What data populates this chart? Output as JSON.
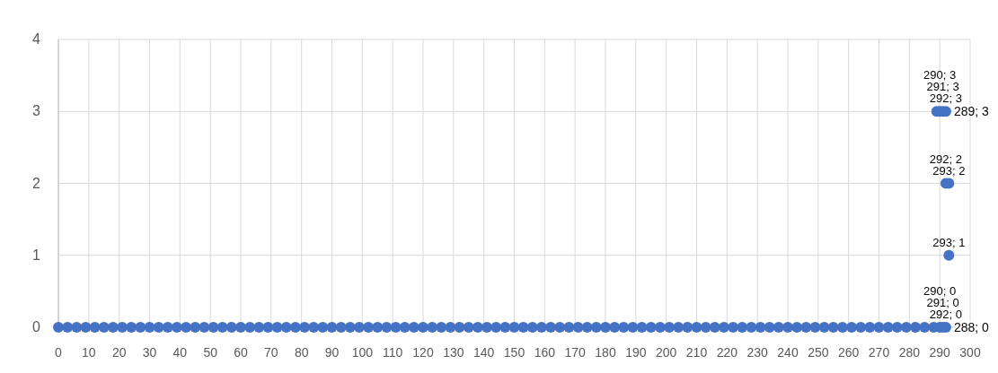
{
  "chart_data": {
    "type": "scatter",
    "xlim": [
      0,
      300
    ],
    "ylim": [
      0,
      4
    ],
    "xticks": [
      0,
      10,
      20,
      30,
      40,
      50,
      60,
      70,
      80,
      90,
      100,
      110,
      120,
      130,
      140,
      150,
      160,
      170,
      180,
      190,
      200,
      210,
      220,
      230,
      240,
      250,
      260,
      270,
      280,
      290,
      300
    ],
    "yticks": [
      0,
      1,
      2,
      3,
      4
    ],
    "grid": true,
    "marker": "circle",
    "legend": false,
    "series": [
      {
        "color": "#4472c4",
        "x": [
          0,
          3,
          6,
          9,
          12,
          15,
          18,
          21,
          24,
          27,
          30,
          33,
          36,
          39,
          42,
          45,
          48,
          51,
          54,
          57,
          60,
          63,
          66,
          69,
          72,
          75,
          78,
          81,
          84,
          87,
          90,
          93,
          96,
          99,
          102,
          105,
          108,
          111,
          114,
          117,
          120,
          123,
          126,
          129,
          132,
          135,
          138,
          141,
          144,
          147,
          150,
          153,
          156,
          159,
          162,
          165,
          168,
          171,
          174,
          177,
          180,
          183,
          186,
          189,
          192,
          195,
          198,
          201,
          204,
          207,
          210,
          213,
          216,
          219,
          222,
          225,
          228,
          231,
          234,
          237,
          240,
          243,
          246,
          249,
          252,
          255,
          258,
          261,
          264,
          267,
          270,
          273,
          276,
          279,
          282,
          285,
          288,
          290,
          291,
          292,
          289,
          290,
          291,
          292,
          292,
          293,
          293
        ],
        "values": [
          0,
          0,
          0,
          0,
          0,
          0,
          0,
          0,
          0,
          0,
          0,
          0,
          0,
          0,
          0,
          0,
          0,
          0,
          0,
          0,
          0,
          0,
          0,
          0,
          0,
          0,
          0,
          0,
          0,
          0,
          0,
          0,
          0,
          0,
          0,
          0,
          0,
          0,
          0,
          0,
          0,
          0,
          0,
          0,
          0,
          0,
          0,
          0,
          0,
          0,
          0,
          0,
          0,
          0,
          0,
          0,
          0,
          0,
          0,
          0,
          0,
          0,
          0,
          0,
          0,
          0,
          0,
          0,
          0,
          0,
          0,
          0,
          0,
          0,
          0,
          0,
          0,
          0,
          0,
          0,
          0,
          0,
          0,
          0,
          0,
          0,
          0,
          0,
          0,
          0,
          0,
          0,
          0,
          0,
          0,
          0,
          0,
          0,
          0,
          0,
          3,
          3,
          3,
          3,
          2,
          2,
          1
        ],
        "value_labels": [
          null,
          null,
          null,
          null,
          null,
          null,
          null,
          null,
          null,
          null,
          null,
          null,
          null,
          null,
          null,
          null,
          null,
          null,
          null,
          null,
          null,
          null,
          null,
          null,
          null,
          null,
          null,
          null,
          null,
          null,
          null,
          null,
          null,
          null,
          null,
          null,
          null,
          null,
          null,
          null,
          null,
          null,
          null,
          null,
          null,
          null,
          null,
          null,
          null,
          null,
          null,
          null,
          null,
          null,
          null,
          null,
          null,
          null,
          null,
          null,
          null,
          null,
          null,
          null,
          null,
          null,
          null,
          null,
          null,
          null,
          null,
          null,
          null,
          null,
          null,
          null,
          null,
          null,
          null,
          null,
          null,
          null,
          null,
          null,
          null,
          null,
          null,
          null,
          null,
          null,
          null,
          null,
          null,
          null,
          null,
          null,
          "288; 0",
          "290; 0",
          "291; 0",
          "292; 0",
          "289; 3",
          "290; 3",
          "291; 3",
          "292; 3",
          "292; 2",
          "293; 2",
          "293; 1"
        ]
      }
    ]
  }
}
